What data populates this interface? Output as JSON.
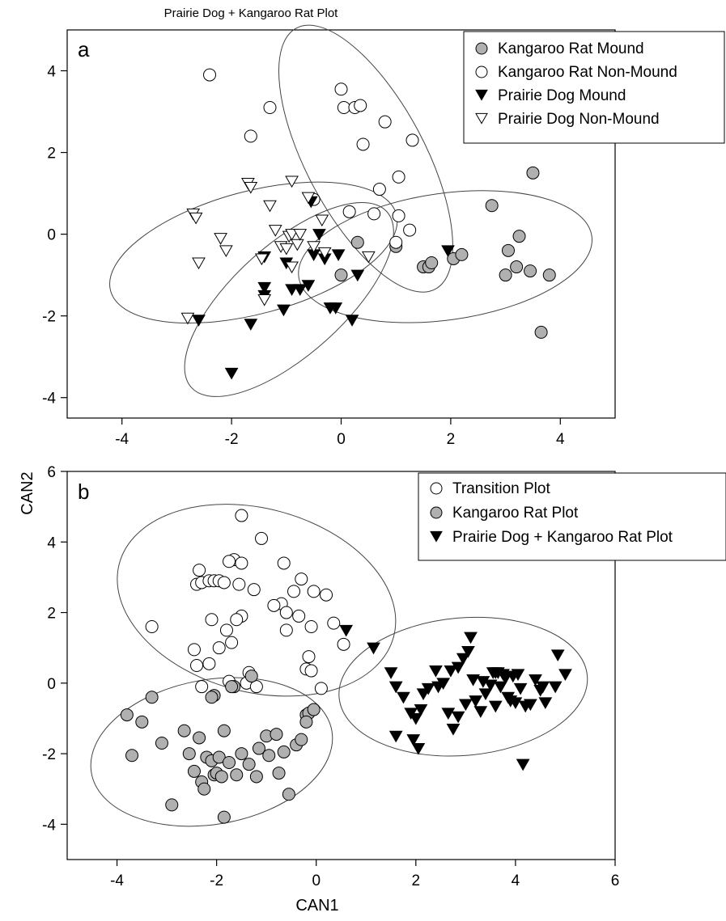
{
  "caption": "Prairie Dog + Kangaroo Rat Plot",
  "xlabel": "CAN1",
  "ylabel": "CAN2",
  "colors": {
    "filled_gray": "#b0b0b0",
    "filled_black": "#000000",
    "open": "#ffffff",
    "outline": "#000000"
  },
  "chart_data": [
    {
      "type": "scatter",
      "panel": "a",
      "xlim": [
        -5,
        5
      ],
      "ylim": [
        -4.5,
        5
      ],
      "xticks": [
        -4,
        -2,
        0,
        2,
        4
      ],
      "yticks": [
        -4,
        -2,
        0,
        2,
        4
      ],
      "legend": "top-right",
      "series": [
        {
          "name": "Kangaroo Rat Mound",
          "marker": "circle",
          "fill": "#b0b0b0",
          "points": [
            [
              0.3,
              -0.2
            ],
            [
              1.0,
              -0.3
            ],
            [
              1.5,
              -0.8
            ],
            [
              1.6,
              -0.8
            ],
            [
              1.65,
              -0.7
            ],
            [
              2.05,
              -0.6
            ],
            [
              2.2,
              -0.5
            ],
            [
              2.75,
              0.7
            ],
            [
              3.0,
              -1.0
            ],
            [
              3.05,
              -0.4
            ],
            [
              3.2,
              -0.8
            ],
            [
              3.25,
              -0.05
            ],
            [
              3.45,
              -0.9
            ],
            [
              3.5,
              1.5
            ],
            [
              3.65,
              -2.4
            ],
            [
              3.8,
              -1.0
            ],
            [
              0.0,
              -1.0
            ]
          ]
        },
        {
          "name": "Kangaroo Rat Non-Mound",
          "marker": "circle",
          "fill": "#ffffff",
          "points": [
            [
              -2.4,
              3.9
            ],
            [
              -1.65,
              2.4
            ],
            [
              -1.3,
              3.1
            ],
            [
              0.0,
              3.55
            ],
            [
              0.05,
              3.1
            ],
            [
              0.25,
              3.1
            ],
            [
              0.35,
              3.15
            ],
            [
              0.4,
              2.2
            ],
            [
              0.8,
              2.75
            ],
            [
              1.3,
              2.3
            ],
            [
              1.05,
              1.4
            ],
            [
              0.7,
              1.1
            ],
            [
              0.6,
              0.5
            ],
            [
              1.05,
              0.45
            ],
            [
              1.25,
              0.1
            ],
            [
              1.0,
              -0.2
            ],
            [
              0.15,
              0.55
            ],
            [
              -0.5,
              0.85
            ]
          ]
        },
        {
          "name": "Prairie Dog Mound",
          "marker": "tri-down",
          "fill": "#000000",
          "points": [
            [
              -2.6,
              -2.1
            ],
            [
              -2.0,
              -3.4
            ],
            [
              -1.65,
              -2.2
            ],
            [
              -1.4,
              -0.55
            ],
            [
              -1.4,
              -1.5
            ],
            [
              -1.05,
              -1.85
            ],
            [
              -1.0,
              -0.7
            ],
            [
              -0.9,
              -1.35
            ],
            [
              -0.75,
              -1.35
            ],
            [
              -0.6,
              -1.25
            ],
            [
              -0.5,
              -0.5
            ],
            [
              -0.3,
              -0.6
            ],
            [
              -0.2,
              -1.8
            ],
            [
              -0.1,
              -1.8
            ],
            [
              -0.05,
              -0.5
            ],
            [
              0.2,
              -2.1
            ],
            [
              0.3,
              -1.0
            ],
            [
              1.95,
              -0.4
            ],
            [
              -0.55,
              0.8
            ],
            [
              -0.4,
              0.0
            ],
            [
              -1.4,
              -1.3
            ]
          ]
        },
        {
          "name": "Prairie Dog Non-Mound",
          "marker": "tri-down",
          "fill": "#ffffff",
          "points": [
            [
              -2.8,
              -2.05
            ],
            [
              -2.7,
              0.5
            ],
            [
              -2.65,
              0.4
            ],
            [
              -2.6,
              -0.7
            ],
            [
              -2.2,
              -0.1
            ],
            [
              -2.1,
              -0.4
            ],
            [
              -1.7,
              1.25
            ],
            [
              -1.65,
              1.15
            ],
            [
              -1.4,
              -1.6
            ],
            [
              -1.45,
              -0.6
            ],
            [
              -1.3,
              0.7
            ],
            [
              -1.2,
              0.1
            ],
            [
              -1.1,
              -0.3
            ],
            [
              -1.0,
              -0.35
            ],
            [
              -0.95,
              -0.05
            ],
            [
              -0.9,
              0.0
            ],
            [
              -0.9,
              -0.8
            ],
            [
              -0.8,
              -0.25
            ],
            [
              -0.75,
              0.0
            ],
            [
              -0.5,
              -0.3
            ],
            [
              -0.35,
              0.35
            ],
            [
              -0.3,
              -0.45
            ],
            [
              0.5,
              -0.55
            ],
            [
              -0.9,
              1.3
            ],
            [
              -0.6,
              0.9
            ]
          ]
        }
      ],
      "ellipses": [
        {
          "cx": 0.45,
          "cy": 1.85,
          "rx": 2.7,
          "ry": 1.45,
          "angle": -62
        },
        {
          "cx": -1.6,
          "cy": -0.45,
          "rx": 2.7,
          "ry": 1.5,
          "angle": 15
        },
        {
          "cx": -0.95,
          "cy": -1.6,
          "rx": 2.4,
          "ry": 1.35,
          "angle": 42
        },
        {
          "cx": 1.9,
          "cy": -0.55,
          "rx": 2.7,
          "ry": 1.55,
          "angle": 8
        }
      ]
    },
    {
      "type": "scatter",
      "panel": "b",
      "xlim": [
        -5,
        6
      ],
      "ylim": [
        -5,
        6
      ],
      "xticks": [
        -4,
        -2,
        0,
        2,
        4,
        6
      ],
      "yticks": [
        -4,
        -2,
        0,
        2,
        4,
        6
      ],
      "legend": "top-right",
      "series": [
        {
          "name": "Transition Plot",
          "marker": "circle",
          "fill": "#ffffff",
          "points": [
            [
              -1.5,
              4.75
            ],
            [
              -1.1,
              4.1
            ],
            [
              -2.35,
              3.2
            ],
            [
              -1.65,
              3.5
            ],
            [
              -1.75,
              3.45
            ],
            [
              -1.5,
              3.4
            ],
            [
              -0.65,
              3.4
            ],
            [
              -2.4,
              2.8
            ],
            [
              -2.3,
              2.85
            ],
            [
              -2.15,
              2.9
            ],
            [
              -2.05,
              2.9
            ],
            [
              -1.95,
              2.9
            ],
            [
              -1.85,
              2.85
            ],
            [
              -1.55,
              2.8
            ],
            [
              -1.25,
              2.65
            ],
            [
              -0.3,
              2.95
            ],
            [
              -0.45,
              2.6
            ],
            [
              -0.05,
              2.6
            ],
            [
              0.2,
              2.5
            ],
            [
              -3.3,
              1.6
            ],
            [
              -1.5,
              1.9
            ],
            [
              -1.6,
              1.8
            ],
            [
              -2.1,
              1.8
            ],
            [
              -0.7,
              2.25
            ],
            [
              -0.85,
              2.2
            ],
            [
              -0.6,
              2.0
            ],
            [
              -0.35,
              1.9
            ],
            [
              -0.1,
              1.6
            ],
            [
              0.35,
              1.7
            ],
            [
              -0.6,
              1.5
            ],
            [
              -1.8,
              1.5
            ],
            [
              -2.45,
              0.95
            ],
            [
              -1.95,
              1.0
            ],
            [
              -1.7,
              1.15
            ],
            [
              -2.4,
              0.5
            ],
            [
              -2.15,
              0.55
            ],
            [
              -1.75,
              0.05
            ],
            [
              -1.4,
              0.0
            ],
            [
              -1.2,
              -0.1
            ],
            [
              -0.15,
              0.75
            ],
            [
              -0.2,
              0.4
            ],
            [
              -0.1,
              0.35
            ],
            [
              0.55,
              1.1
            ],
            [
              0.1,
              -0.15
            ],
            [
              -2.3,
              -0.1
            ],
            [
              -1.35,
              0.3
            ]
          ]
        },
        {
          "name": "Kangaroo Rat Plot",
          "marker": "circle",
          "fill": "#b0b0b0",
          "points": [
            [
              -3.8,
              -0.9
            ],
            [
              -3.7,
              -2.05
            ],
            [
              -3.5,
              -1.1
            ],
            [
              -3.3,
              -0.4
            ],
            [
              -3.1,
              -1.7
            ],
            [
              -2.9,
              -3.45
            ],
            [
              -2.65,
              -1.35
            ],
            [
              -2.55,
              -2.0
            ],
            [
              -2.45,
              -2.5
            ],
            [
              -2.35,
              -1.55
            ],
            [
              -2.3,
              -2.8
            ],
            [
              -2.25,
              -3.0
            ],
            [
              -2.2,
              -2.1
            ],
            [
              -2.1,
              -2.2
            ],
            [
              -2.05,
              -2.6
            ],
            [
              -2.0,
              -2.55
            ],
            [
              -1.95,
              -2.1
            ],
            [
              -1.9,
              -2.65
            ],
            [
              -1.85,
              -3.8
            ],
            [
              -1.75,
              -2.25
            ],
            [
              -1.6,
              -2.6
            ],
            [
              -1.5,
              -2.0
            ],
            [
              -1.35,
              -2.3
            ],
            [
              -1.2,
              -2.65
            ],
            [
              -1.15,
              -1.85
            ],
            [
              -1.0,
              -1.5
            ],
            [
              -0.95,
              -2.05
            ],
            [
              -0.8,
              -1.45
            ],
            [
              -0.75,
              -2.55
            ],
            [
              -0.65,
              -1.95
            ],
            [
              -0.55,
              -3.15
            ],
            [
              -0.4,
              -1.75
            ],
            [
              -0.3,
              -1.6
            ],
            [
              -0.2,
              -0.9
            ],
            [
              -0.15,
              -0.85
            ],
            [
              -0.05,
              -0.75
            ],
            [
              -0.2,
              -1.1
            ],
            [
              -1.65,
              -0.1
            ],
            [
              -1.7,
              -0.1
            ],
            [
              -2.05,
              -0.35
            ],
            [
              -1.85,
              -1.35
            ],
            [
              -1.3,
              0.2
            ],
            [
              -2.1,
              -0.4
            ]
          ]
        },
        {
          "name": "Prairie Dog + Kangaroo Rat Plot",
          "marker": "tri-down",
          "fill": "#000000",
          "points": [
            [
              0.6,
              1.5
            ],
            [
              1.15,
              1.0
            ],
            [
              1.5,
              0.3
            ],
            [
              1.6,
              -0.1
            ],
            [
              1.75,
              -0.4
            ],
            [
              1.6,
              -1.5
            ],
            [
              1.95,
              -1.6
            ],
            [
              2.05,
              -1.85
            ],
            [
              2.0,
              -1.0
            ],
            [
              2.1,
              -0.75
            ],
            [
              2.15,
              -0.3
            ],
            [
              2.25,
              -0.15
            ],
            [
              2.4,
              0.35
            ],
            [
              2.55,
              0.0
            ],
            [
              2.65,
              -0.85
            ],
            [
              2.75,
              -1.3
            ],
            [
              2.85,
              -0.95
            ],
            [
              2.85,
              0.45
            ],
            [
              2.95,
              0.7
            ],
            [
              3.05,
              0.9
            ],
            [
              3.1,
              1.3
            ],
            [
              3.15,
              0.1
            ],
            [
              3.2,
              -0.5
            ],
            [
              3.3,
              -0.8
            ],
            [
              3.4,
              -0.3
            ],
            [
              3.5,
              -0.05
            ],
            [
              3.55,
              0.3
            ],
            [
              3.6,
              -0.65
            ],
            [
              3.65,
              0.3
            ],
            [
              3.7,
              -0.1
            ],
            [
              3.75,
              0.25
            ],
            [
              3.8,
              0.15
            ],
            [
              3.85,
              -0.4
            ],
            [
              3.9,
              -0.5
            ],
            [
              3.95,
              0.2
            ],
            [
              4.0,
              -0.55
            ],
            [
              4.05,
              0.25
            ],
            [
              4.1,
              -0.15
            ],
            [
              4.15,
              -2.3
            ],
            [
              4.2,
              -0.65
            ],
            [
              4.3,
              -0.6
            ],
            [
              4.4,
              0.1
            ],
            [
              4.5,
              -0.2
            ],
            [
              4.55,
              -0.1
            ],
            [
              4.6,
              -0.55
            ],
            [
              4.8,
              -0.1
            ],
            [
              4.85,
              0.8
            ],
            [
              5.0,
              0.25
            ],
            [
              2.45,
              -0.1
            ],
            [
              2.7,
              0.35
            ],
            [
              3.35,
              0.05
            ],
            [
              3.0,
              -0.6
            ],
            [
              1.9,
              -0.85
            ],
            [
              3.6,
              0.3
            ]
          ]
        }
      ],
      "ellipses": [
        {
          "cx": -1.2,
          "cy": 2.35,
          "rx": 2.85,
          "ry": 2.6,
          "angle": -15
        },
        {
          "cx": -2.1,
          "cy": -1.95,
          "rx": 2.45,
          "ry": 2.05,
          "angle": 10
        },
        {
          "cx": 2.95,
          "cy": -0.1,
          "rx": 2.5,
          "ry": 1.95,
          "angle": 5
        }
      ]
    }
  ]
}
